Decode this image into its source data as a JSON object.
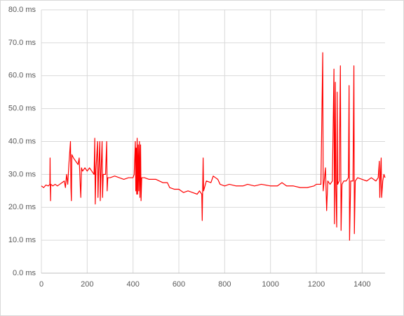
{
  "chart_data": {
    "type": "line",
    "x": [
      0,
      10,
      20,
      30,
      37,
      38,
      39,
      40,
      41,
      50,
      60,
      70,
      80,
      90,
      100,
      105,
      110,
      115,
      120,
      125,
      127,
      129,
      131,
      133,
      140,
      150,
      160,
      165,
      170,
      172,
      175,
      180,
      190,
      200,
      210,
      220,
      230,
      233,
      235,
      238,
      245,
      247,
      250,
      255,
      257,
      260,
      265,
      267,
      270,
      280,
      285,
      287,
      290,
      300,
      320,
      340,
      360,
      380,
      400,
      405,
      410,
      412,
      414,
      416,
      418,
      420,
      423,
      425,
      428,
      430,
      433,
      435,
      438,
      450,
      470,
      500,
      530,
      550,
      560,
      580,
      600,
      620,
      640,
      660,
      680,
      690,
      700,
      702,
      704,
      706,
      708,
      712,
      720,
      740,
      750,
      760,
      770,
      780,
      800,
      820,
      850,
      880,
      900,
      930,
      960,
      1000,
      1030,
      1050,
      1070,
      1100,
      1130,
      1160,
      1190,
      1200,
      1210,
      1220,
      1228,
      1230,
      1240,
      1245,
      1250,
      1260,
      1270,
      1277,
      1279,
      1283,
      1285,
      1289,
      1291,
      1293,
      1300,
      1305,
      1308,
      1312,
      1320,
      1330,
      1340,
      1343,
      1345,
      1350,
      1360,
      1364,
      1366,
      1370,
      1380,
      1400,
      1420,
      1440,
      1460,
      1470,
      1475,
      1477,
      1480,
      1483,
      1485,
      1490,
      1495,
      1500
    ],
    "series": [
      {
        "color": "#ff0000",
        "values": [
          26.5,
          26,
          26.8,
          26.5,
          27,
          35,
          26,
          22,
          27,
          26.5,
          27,
          26.5,
          27,
          27.5,
          28,
          26,
          30,
          27,
          33,
          38,
          40,
          26,
          22,
          36,
          35,
          34,
          33,
          35,
          26,
          23,
          32,
          31,
          32,
          31,
          32,
          31,
          30,
          41,
          21,
          31,
          40,
          23,
          31,
          40,
          22,
          30,
          40,
          23,
          30,
          30,
          40,
          25,
          29,
          29,
          29.5,
          29,
          28.5,
          29,
          29,
          30,
          40,
          25,
          38,
          24,
          41,
          24,
          39,
          25,
          40,
          23,
          39,
          22,
          29,
          29,
          28.5,
          28.5,
          27.5,
          27.5,
          26,
          25.5,
          25.5,
          24.5,
          25,
          24.5,
          24,
          25,
          24,
          16,
          26,
          35,
          25,
          26,
          28,
          27.5,
          29.5,
          29,
          28.5,
          27,
          26.5,
          27,
          26.5,
          26.5,
          27,
          26.5,
          27,
          26.5,
          26.5,
          27.5,
          26.5,
          26.5,
          26,
          26,
          26.5,
          27,
          27,
          27,
          67,
          25,
          32,
          19,
          28,
          27,
          28,
          62,
          15,
          58,
          26,
          14,
          55,
          27,
          28,
          63,
          13,
          27,
          28,
          28,
          29,
          57,
          10,
          28,
          28,
          63,
          12,
          28,
          29,
          28.5,
          28,
          29,
          28,
          29,
          34,
          23,
          30,
          35,
          23,
          28,
          30,
          29
        ]
      }
    ],
    "xlim": [
      0,
      1500
    ],
    "xticks": [
      0,
      200,
      400,
      600,
      800,
      1000,
      1200,
      1400
    ],
    "ylim": [
      0,
      80
    ],
    "yticks": [
      {
        "value": 0,
        "label": "0.0 ms"
      },
      {
        "value": 10,
        "label": "10.0 ms"
      },
      {
        "value": 20,
        "label": "20.0 ms"
      },
      {
        "value": 30,
        "label": "30.0 ms"
      },
      {
        "value": 40,
        "label": "40.0 ms"
      },
      {
        "value": 50,
        "label": "50.0 ms"
      },
      {
        "value": 60,
        "label": "60.0 ms"
      },
      {
        "value": 70,
        "label": "70.0 ms"
      },
      {
        "value": 80,
        "label": "80.0 ms"
      }
    ],
    "grid": true
  }
}
